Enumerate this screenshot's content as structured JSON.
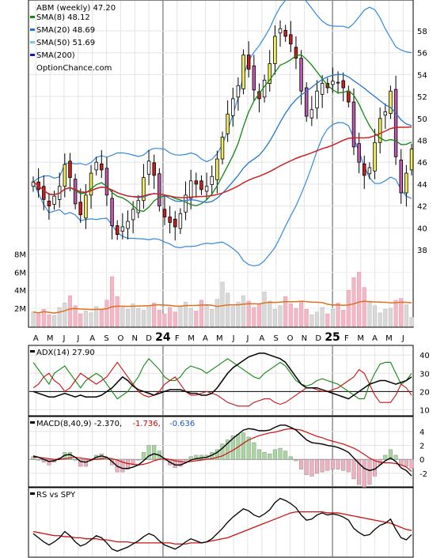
{
  "chart_data": {
    "type": "candlestick",
    "title": "ABM (weekly) 47.20",
    "watermark": "OptionChance.com",
    "legend": [
      {
        "label": "SMA(8) 48.12",
        "color": "#118811"
      },
      {
        "label": "SMA(20) 48.69",
        "color": "#2277cc"
      },
      {
        "label": "SMA(50) 51.69",
        "color": "#7fc2ee"
      },
      {
        "label": "SMA(200)",
        "color": "#1a1aa0"
      }
    ],
    "x_axis": {
      "tick_labels": [
        "A",
        "M",
        "J",
        "J",
        "A",
        "S",
        "O",
        "N",
        "D",
        "24",
        "F",
        "M",
        "A",
        "M",
        "J",
        "J",
        "A",
        "S",
        "O",
        "N",
        "D",
        "25",
        "F",
        "M",
        "A",
        "M",
        "J"
      ],
      "year_labels": [
        "24",
        "25"
      ]
    },
    "price_axis": {
      "ticks": [
        38,
        40,
        42,
        44,
        46,
        48,
        50,
        52,
        54,
        56,
        58
      ],
      "range": [
        36.2,
        60.6
      ]
    },
    "volume_axis": {
      "ticks": [
        "2M",
        "4M",
        "6M",
        "8M"
      ],
      "values": [
        2,
        4,
        6,
        8
      ],
      "range": [
        0,
        8.3
      ]
    },
    "closes": [
      44.2,
      43.5,
      42.6,
      42.0,
      42.9,
      43.8,
      45.8,
      44.6,
      42.2,
      41.2,
      43.0,
      45.0,
      46.0,
      45.3,
      43.0,
      40.2,
      39.4,
      40.1,
      40.6,
      41.7,
      42.5,
      44.6,
      46.1,
      44.8,
      42.0,
      41.0,
      40.5,
      40.1,
      41.3,
      43.0,
      44.3,
      44.0,
      43.5,
      43.8,
      44.7,
      46.3,
      48.3,
      50.4,
      51.8,
      53.0,
      55.8,
      54.5,
      52.6,
      51.8,
      53.5,
      55.0,
      57.5,
      58.2,
      57.5,
      56.8,
      55.5,
      52.5,
      50.2,
      50.8,
      52.5,
      53.2,
      52.8,
      53.4,
      53.3,
      52.8,
      51.5,
      47.4,
      46.0,
      44.8,
      45.5,
      47.8,
      50.0,
      50.6,
      52.5,
      46.5,
      43.2,
      45.0,
      47.2
    ],
    "volume_millions": [
      1.6,
      1.4,
      1.9,
      1.3,
      1.2,
      2.1,
      2.6,
      3.4,
      2.3,
      1.4,
      1.7,
      1.5,
      2.2,
      1.8,
      2.9,
      5.5,
      3.3,
      2.2,
      1.9,
      2.5,
      2.0,
      1.8,
      2.3,
      2.6,
      1.8,
      1.4,
      2.1,
      1.6,
      2.2,
      2.7,
      2.0,
      1.7,
      2.9,
      2.3,
      1.9,
      3.0,
      4.9,
      3.7,
      2.2,
      2.7,
      3.4,
      2.8,
      2.1,
      2.5,
      3.8,
      2.8,
      1.9,
      2.3,
      3.3,
      2.5,
      2.0,
      2.8,
      1.9,
      1.3,
      1.6,
      2.1,
      1.4,
      1.9,
      2.6,
      1.8,
      4.0,
      5.4,
      6.0,
      4.3,
      2.8,
      2.3,
      1.5,
      1.9,
      2.0,
      2.9,
      3.1,
      2.4,
      1.0
    ],
    "adx": {
      "label": "ADX(14) 27.90",
      "axis_ticks": [
        10,
        20,
        30,
        40
      ],
      "range": [
        8,
        44
      ],
      "adx": [
        20,
        19,
        18,
        17,
        17,
        18,
        19,
        18,
        17,
        18,
        17,
        17,
        17,
        18,
        20,
        22,
        25,
        28,
        26,
        23,
        21,
        20,
        19,
        18,
        19,
        20,
        21,
        21,
        21,
        20,
        19,
        19,
        18,
        18,
        19,
        22,
        26,
        30,
        33,
        35,
        37,
        39,
        40,
        41,
        41,
        40,
        39,
        38,
        36,
        32,
        28,
        24,
        22,
        22,
        22,
        21,
        20,
        19,
        18,
        17,
        16,
        18,
        20,
        22,
        24,
        25,
        26,
        26,
        25,
        24,
        25,
        26,
        28
      ],
      "plus_di": [
        36,
        32,
        28,
        24,
        30,
        32,
        34,
        30,
        26,
        22,
        26,
        28,
        30,
        28,
        24,
        20,
        16,
        18,
        20,
        24,
        28,
        34,
        38,
        35,
        32,
        28,
        26,
        26,
        28,
        32,
        34,
        33,
        32,
        30,
        32,
        34,
        36,
        38,
        36,
        34,
        32,
        30,
        28,
        27,
        30,
        32,
        34,
        36,
        34,
        30,
        26,
        24,
        23,
        24,
        26,
        27,
        26,
        25,
        24,
        22,
        20,
        18,
        16,
        16,
        24,
        30,
        35,
        36,
        36,
        30,
        24,
        26,
        30
      ],
      "minus_di": [
        22,
        24,
        28,
        30,
        26,
        24,
        20,
        22,
        26,
        30,
        28,
        26,
        24,
        26,
        28,
        32,
        36,
        32,
        28,
        24,
        20,
        18,
        17,
        18,
        20,
        24,
        26,
        28,
        24,
        20,
        18,
        18,
        19,
        20,
        19,
        18,
        16,
        14,
        13,
        12,
        12,
        12,
        14,
        15,
        16,
        16,
        14,
        13,
        14,
        16,
        18,
        20,
        22,
        22,
        21,
        20,
        20,
        21,
        22,
        24,
        26,
        28,
        32,
        30,
        24,
        18,
        14,
        14,
        14,
        18,
        24,
        22,
        18
      ]
    },
    "macd": {
      "label": "MACD(8,40,9) -2.370,",
      "signal_label": "-1.736,",
      "hist_label": "-0.636",
      "axis_ticks": [
        -2,
        0,
        2,
        4
      ],
      "range": [
        -3.6,
        5.8
      ],
      "macd": [
        0.5,
        0.3,
        0.0,
        -0.3,
        -0.2,
        0.1,
        0.6,
        0.7,
        0.3,
        -0.3,
        -0.4,
        -0.1,
        0.3,
        0.5,
        0.3,
        -0.3,
        -1.0,
        -1.3,
        -1.3,
        -1.1,
        -0.8,
        -0.2,
        0.5,
        0.8,
        0.6,
        0.1,
        -0.4,
        -0.8,
        -0.8,
        -0.5,
        -0.1,
        0.1,
        0.2,
        0.3,
        0.6,
        1.0,
        1.6,
        2.3,
        3.0,
        3.6,
        4.2,
        4.4,
        4.3,
        4.1,
        4.1,
        4.2,
        4.6,
        4.9,
        4.9,
        4.6,
        4.2,
        3.5,
        2.8,
        2.4,
        2.3,
        2.2,
        2.0,
        1.9,
        1.7,
        1.4,
        1.0,
        0.2,
        -0.6,
        -1.3,
        -1.6,
        -1.4,
        -0.8,
        -0.2,
        0.2,
        -0.3,
        -1.2,
        -1.6,
        -2.37
      ],
      "signal": [
        0.3,
        0.3,
        0.2,
        0.1,
        0.0,
        0.0,
        0.1,
        0.2,
        0.3,
        0.2,
        0.1,
        0.0,
        0.0,
        0.1,
        0.2,
        0.1,
        -0.1,
        -0.4,
        -0.6,
        -0.7,
        -0.8,
        -0.7,
        -0.5,
        -0.2,
        0.0,
        0.1,
        0.0,
        -0.2,
        -0.3,
        -0.4,
        -0.3,
        -0.2,
        -0.1,
        0.0,
        0.1,
        0.3,
        0.5,
        0.9,
        1.3,
        1.8,
        2.3,
        2.8,
        3.1,
        3.4,
        3.6,
        3.8,
        3.9,
        4.1,
        4.3,
        4.4,
        4.3,
        4.2,
        3.9,
        3.6,
        3.3,
        3.1,
        2.8,
        2.6,
        2.4,
        2.2,
        1.9,
        1.6,
        1.2,
        0.7,
        0.2,
        -0.2,
        -0.4,
        -0.5,
        -0.5,
        -0.6,
        -0.8,
        -1.1,
        -1.736
      ]
    },
    "rs_vs_spy": {
      "label": "RS vs SPY",
      "values": [
        42,
        38,
        34,
        31,
        34,
        38,
        44,
        40,
        34,
        30,
        32,
        36,
        40,
        38,
        33,
        27,
        25,
        27,
        29,
        32,
        35,
        39,
        42,
        40,
        35,
        31,
        29,
        27,
        30,
        34,
        37,
        35,
        33,
        34,
        37,
        42,
        47,
        53,
        58,
        62,
        66,
        64,
        60,
        58,
        61,
        65,
        72,
        76,
        74,
        71,
        67,
        60,
        55,
        56,
        60,
        62,
        60,
        61,
        60,
        58,
        55,
        47,
        43,
        40,
        41,
        46,
        50,
        52,
        56,
        46,
        38,
        36,
        41
      ],
      "sma": [
        44,
        43,
        42,
        41,
        40,
        40,
        39,
        39,
        38,
        38,
        37,
        37,
        37,
        36,
        36,
        35,
        34,
        34,
        34,
        33,
        33,
        33,
        33,
        33,
        33,
        33,
        33,
        32,
        32,
        32,
        33,
        33,
        33,
        34,
        35,
        36,
        37,
        38,
        40,
        42,
        44,
        46,
        48,
        50,
        52,
        54,
        56,
        58,
        60,
        62,
        63,
        63,
        63,
        63,
        63,
        63,
        62,
        62,
        62,
        61,
        60,
        59,
        58,
        57,
        56,
        55,
        54,
        53,
        52,
        50,
        48,
        46,
        45
      ]
    }
  }
}
